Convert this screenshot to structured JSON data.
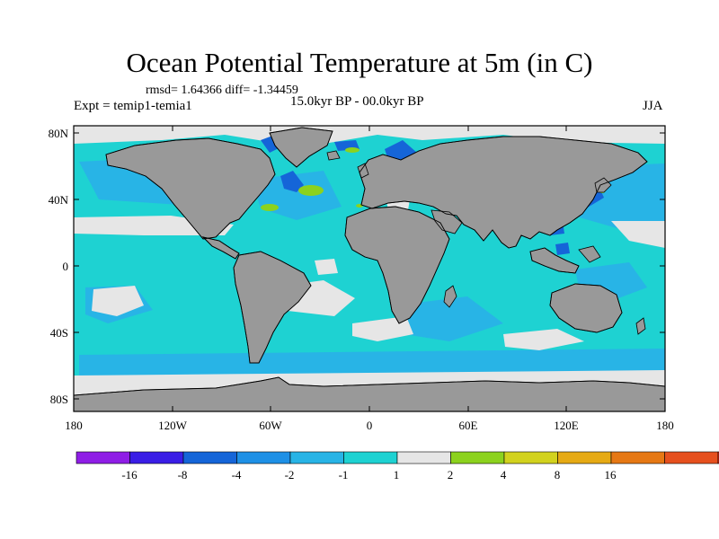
{
  "title": "Ocean Potential Temperature at 5m (in C)",
  "stats": "rmsd= 1.64366 diff= -1.34459",
  "left_label": "Expt = temip1-temia1",
  "center_label": "15.0kyr BP - 00.0kyr BP",
  "right_label": "JJA",
  "lat_ticks": [
    "80N",
    "40N",
    "0",
    "40S",
    "80S"
  ],
  "lon_ticks": [
    "180",
    "120W",
    "60W",
    "0",
    "60E",
    "120E",
    "180"
  ],
  "colorbar": {
    "colors": [
      "#8f1ee6",
      "#3a1ee6",
      "#1565d8",
      "#1e90e6",
      "#28b4e6",
      "#1ed2d2",
      "#e6e6e6",
      "#8cd21e",
      "#d2d21e",
      "#e6aa14",
      "#e67814",
      "#e6501e",
      "#e62814"
    ],
    "labels": [
      "-16",
      "-8",
      "-4",
      "-2",
      "-1",
      "1",
      "2",
      "4",
      "8",
      "16"
    ]
  },
  "map_colors": {
    "land": "#999999",
    "ocean_base": "#1ed2d2",
    "cool": "#28b4e6",
    "neutral": "#e6e6e6",
    "cold": "#1565d8",
    "warm": "#8cd21e",
    "coast": "#000000"
  }
}
